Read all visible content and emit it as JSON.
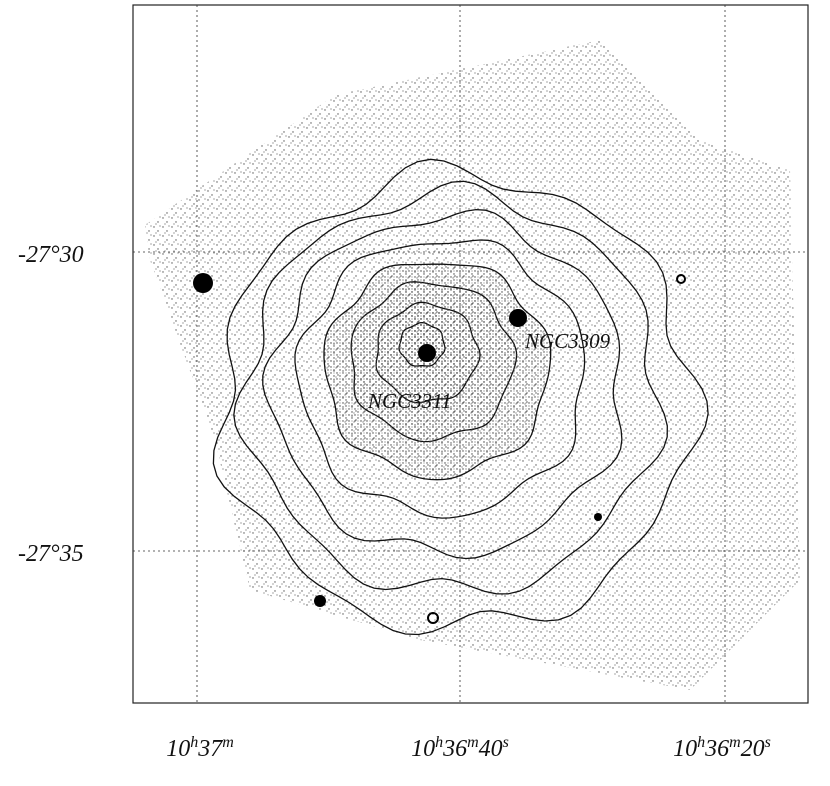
{
  "x_ticks": [
    [
      "10",
      "h",
      "37",
      "m"
    ],
    [
      "10",
      "h",
      "36",
      "m",
      "40",
      "s"
    ],
    [
      "10",
      "h",
      "36",
      "m",
      "20",
      "s"
    ]
  ],
  "y_ticks": [
    "-27°30",
    "-27°35"
  ],
  "annotations": [
    "NGC3309",
    "NGC3311"
  ]
}
